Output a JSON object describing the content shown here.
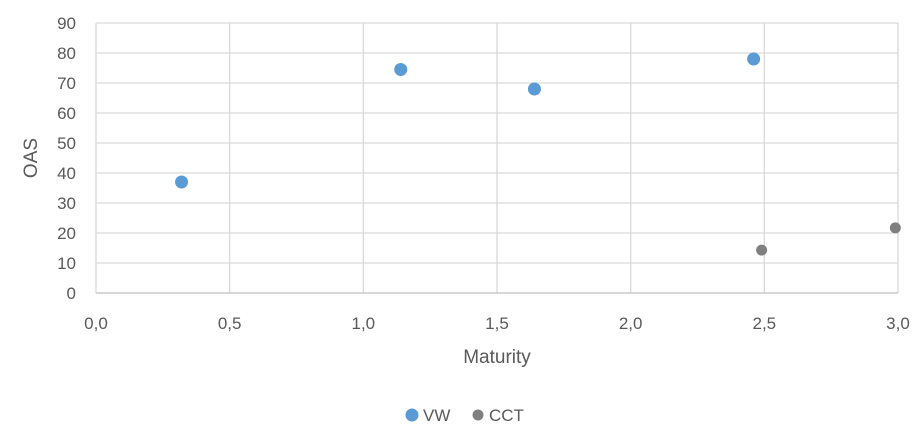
{
  "chart_data": {
    "type": "scatter",
    "title": "",
    "xlabel": "Maturity",
    "ylabel": "OAS",
    "xlim": [
      0,
      3
    ],
    "ylim": [
      0,
      90
    ],
    "x_ticks": [
      "0,0",
      "0,5",
      "1,0",
      "1,5",
      "2,0",
      "2,5",
      "3,0"
    ],
    "x_tick_values": [
      0,
      0.5,
      1.0,
      1.5,
      2.0,
      2.5,
      3.0
    ],
    "y_ticks": [
      "0",
      "10",
      "20",
      "30",
      "40",
      "50",
      "60",
      "70",
      "80",
      "90"
    ],
    "y_tick_values": [
      0,
      10,
      20,
      30,
      40,
      50,
      60,
      70,
      80,
      90
    ],
    "grid": true,
    "legend_position": "bottom",
    "series": [
      {
        "name": "VW",
        "color": "#5b9bd5",
        "points": [
          {
            "x": 0.32,
            "y": 37
          },
          {
            "x": 1.14,
            "y": 74.5
          },
          {
            "x": 1.64,
            "y": 68
          },
          {
            "x": 2.46,
            "y": 78
          }
        ]
      },
      {
        "name": "CCT",
        "color": "#7f7f7f",
        "points": [
          {
            "x": 2.49,
            "y": 14.3
          },
          {
            "x": 2.99,
            "y": 21.7
          }
        ]
      }
    ]
  }
}
